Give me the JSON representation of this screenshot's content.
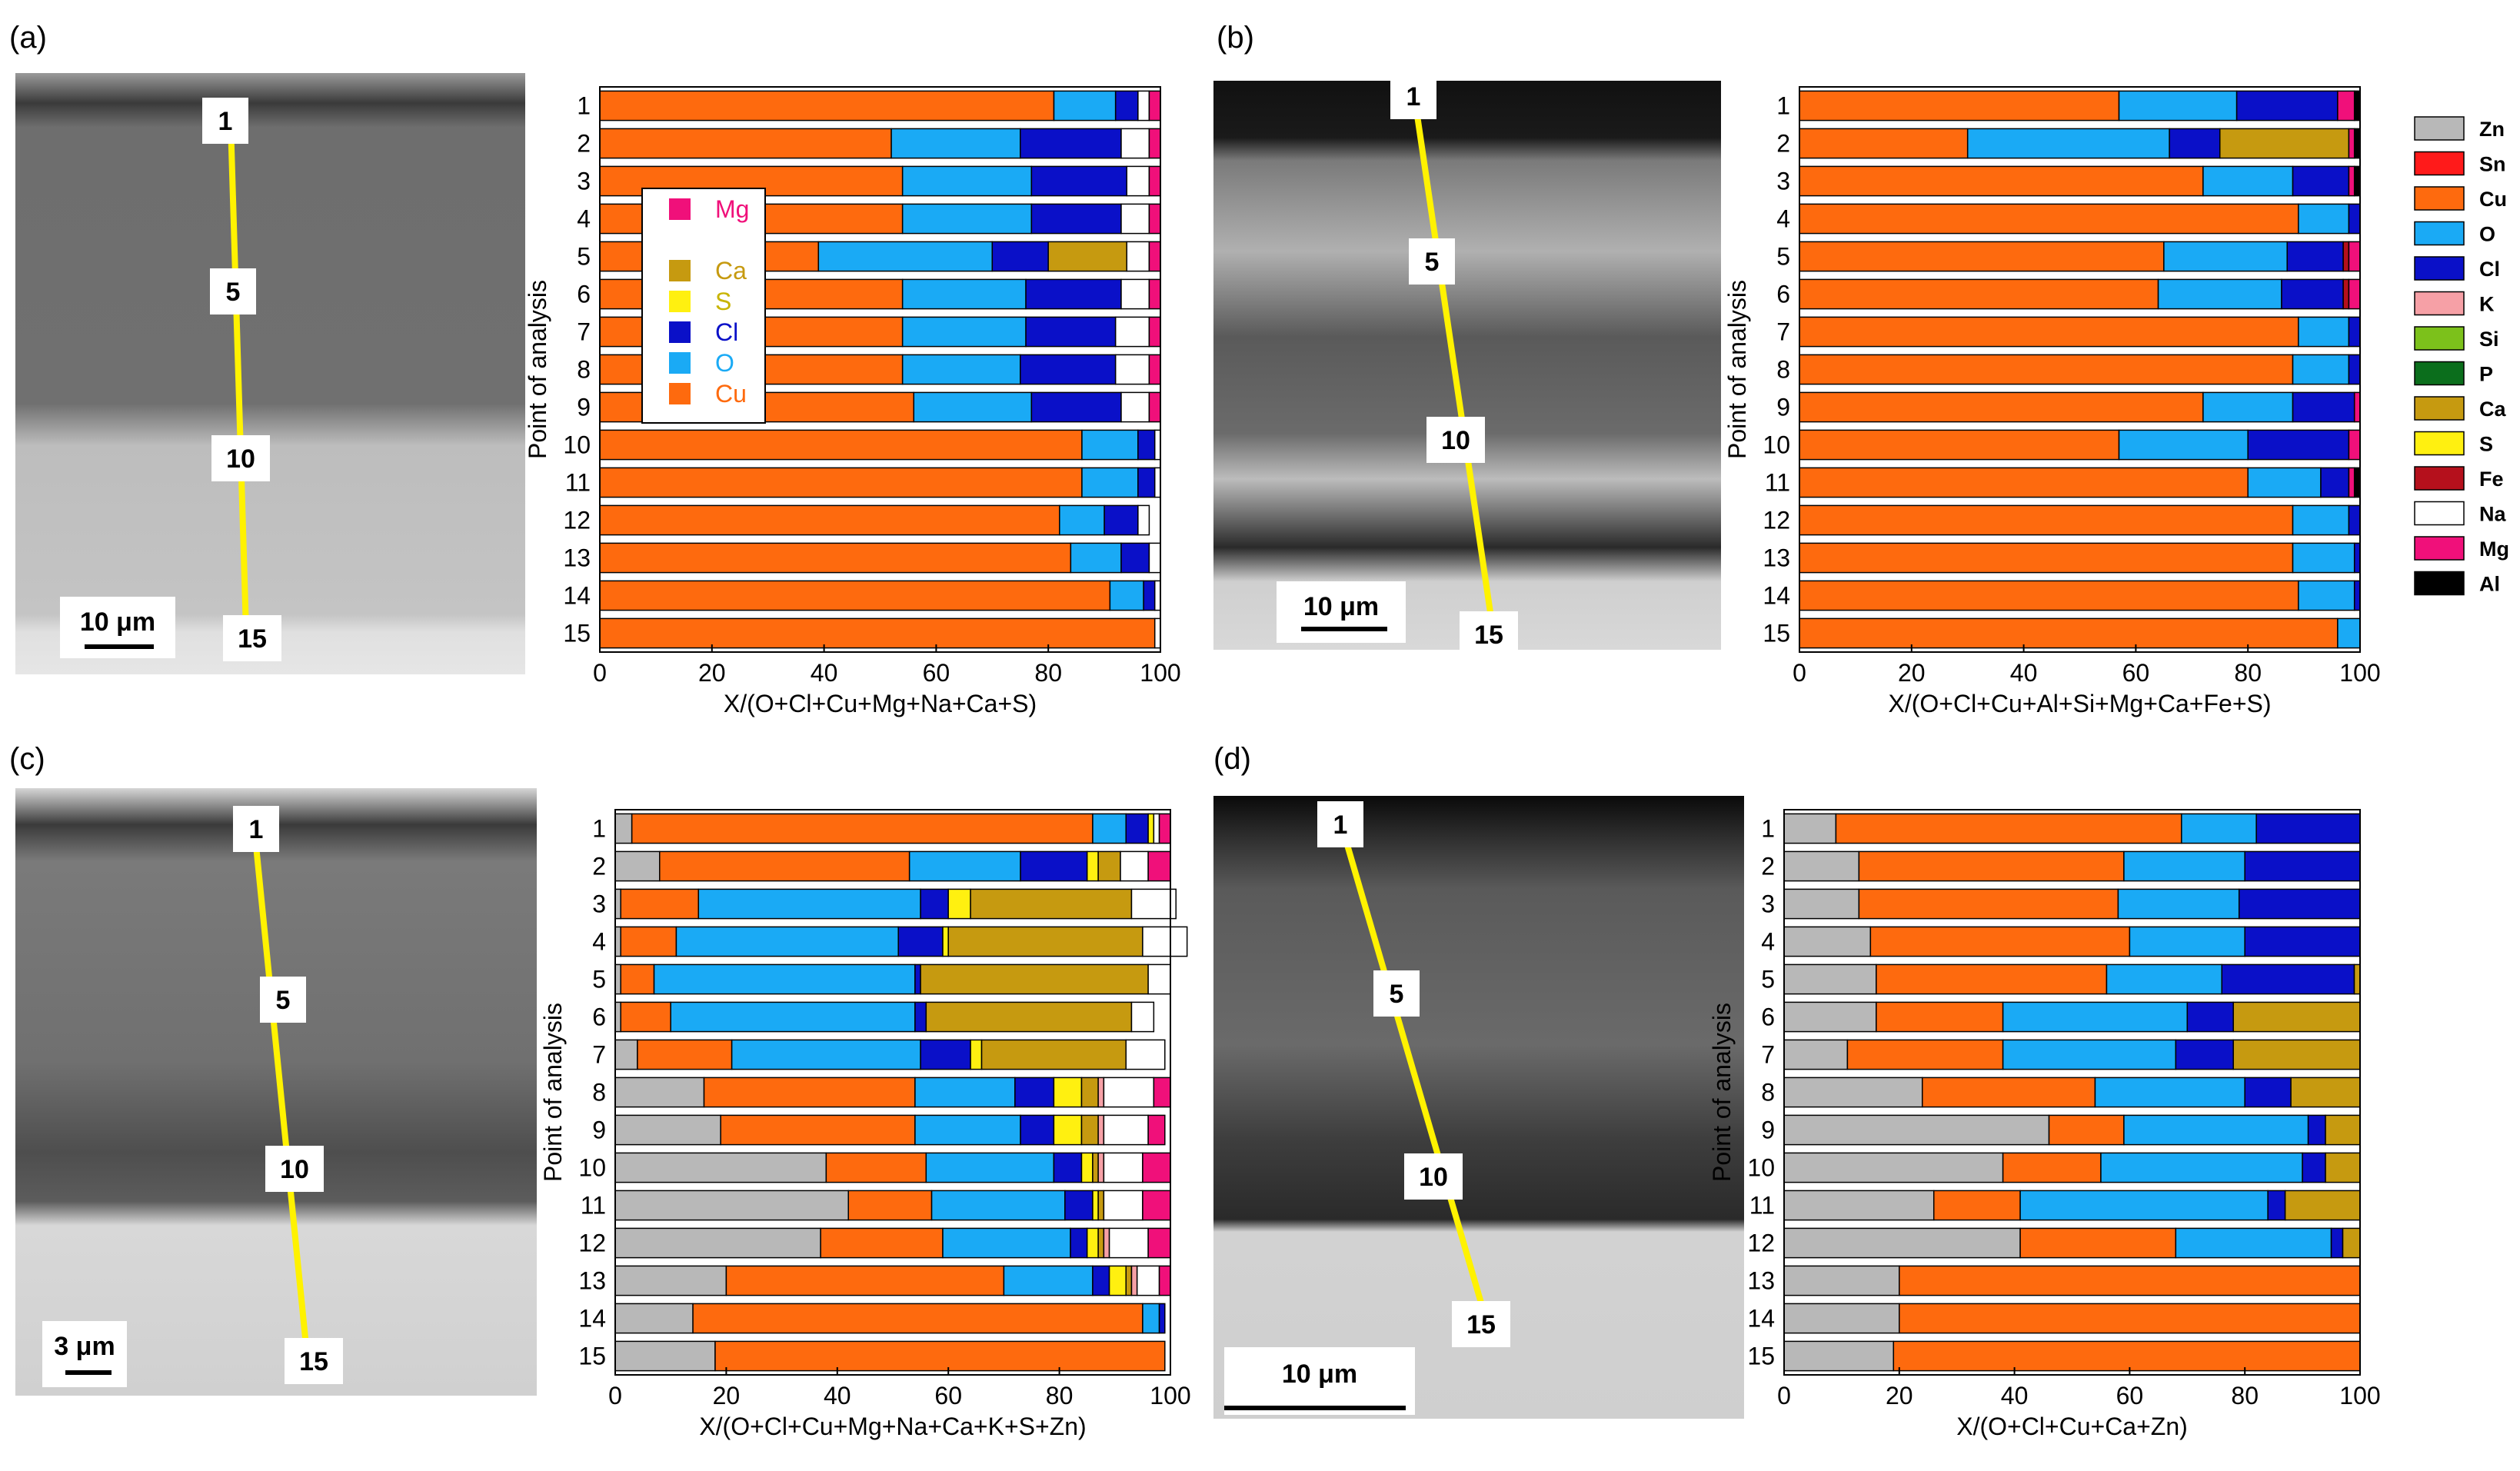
{
  "colors": {
    "Zn": "#b8b8b8",
    "Sn": "#ff1a1a",
    "Cu": "#fe6a0e",
    "O": "#1aaaf5",
    "Cl": "#0a10c8",
    "K": "#f6a0a6",
    "Si": "#7cc11b",
    "P": "#0b6e1c",
    "Ca": "#c69a10",
    "S": "#fff010",
    "Fe": "#b5101c",
    "Na": "#ffffff",
    "Mg": "#f0107a",
    "Al": "#000000"
  },
  "legend": {
    "items": [
      "Zn",
      "Sn",
      "Cu",
      "O",
      "Cl",
      "K",
      "Si",
      "P",
      "Ca",
      "S",
      "Fe",
      "Na",
      "Mg",
      "Al"
    ]
  },
  "panel_a_inset_legend": [
    {
      "name": "Mg",
      "text_color": "#f0107a"
    },
    {
      "name": "",
      "text_color": "#000000"
    },
    {
      "name": "Ca",
      "text_color": "#c69a10"
    },
    {
      "name": "S",
      "text_color": "#c8b400"
    },
    {
      "name": "Cl",
      "text_color": "#0a10c8"
    },
    {
      "name": "O",
      "text_color": "#1aaaf5"
    },
    {
      "name": "Cu",
      "text_color": "#fe6a0e"
    }
  ],
  "panels": [
    {
      "letter": "(a)",
      "scale_bar": "10 μm",
      "points": [
        "1",
        "5",
        "10",
        "15"
      ]
    },
    {
      "letter": "(b)",
      "scale_bar": "10 μm",
      "points": [
        "1",
        "5",
        "10",
        "15"
      ]
    },
    {
      "letter": "(c)",
      "scale_bar": "3 μm",
      "points": [
        "1",
        "5",
        "10",
        "15"
      ]
    },
    {
      "letter": "(d)",
      "scale_bar": "10 μm",
      "points": [
        "1",
        "5",
        "10",
        "15"
      ]
    }
  ],
  "chart_data": [
    {
      "type": "bar",
      "orientation": "horizontal",
      "stacked": true,
      "ylabel": "Point of analysis",
      "xlabel": "X/(O+Cl+Cu+Mg+Na+Ca+S)",
      "xlim": [
        0,
        100
      ],
      "xticks": [
        0,
        20,
        40,
        60,
        80,
        100
      ],
      "categories": [
        "1",
        "2",
        "3",
        "4",
        "5",
        "6",
        "7",
        "8",
        "9",
        "10",
        "11",
        "12",
        "13",
        "14",
        "15"
      ],
      "series": [
        {
          "name": "Cu",
          "values": [
            81,
            52,
            54,
            54,
            39,
            54,
            54,
            54,
            56,
            86,
            86,
            82,
            84,
            91,
            99
          ]
        },
        {
          "name": "O",
          "values": [
            11,
            23,
            23,
            23,
            31,
            22,
            22,
            21,
            21,
            10,
            10,
            8,
            9,
            6,
            0
          ]
        },
        {
          "name": "Cl",
          "values": [
            4,
            18,
            17,
            16,
            10,
            17,
            16,
            17,
            16,
            3,
            3,
            6,
            5,
            2,
            0
          ]
        },
        {
          "name": "Ca",
          "values": [
            0,
            0,
            0,
            0,
            14,
            0,
            0,
            0,
            0,
            0,
            0,
            0,
            0,
            0,
            0
          ]
        },
        {
          "name": "S",
          "values": [
            0,
            0,
            0,
            0,
            0,
            0,
            0,
            0,
            0,
            0,
            0,
            0,
            0,
            0,
            0
          ]
        },
        {
          "name": "Na",
          "values": [
            2,
            5,
            4,
            5,
            4,
            5,
            6,
            6,
            5,
            1,
            1,
            2,
            2,
            1,
            1
          ]
        },
        {
          "name": "Mg",
          "values": [
            2,
            2,
            2,
            2,
            2,
            2,
            2,
            2,
            2,
            0,
            0,
            0,
            0,
            0,
            0
          ]
        }
      ]
    },
    {
      "type": "bar",
      "orientation": "horizontal",
      "stacked": true,
      "ylabel": "Point of analysis",
      "xlabel": "X/(O+Cl+Cu+Al+Si+Mg+Ca+Fe+S)",
      "xlim": [
        0,
        100
      ],
      "xticks": [
        0,
        20,
        40,
        60,
        80,
        100
      ],
      "categories": [
        "1",
        "2",
        "3",
        "4",
        "5",
        "6",
        "7",
        "8",
        "9",
        "10",
        "11",
        "12",
        "13",
        "14",
        "15"
      ],
      "series": [
        {
          "name": "Cu",
          "values": [
            57,
            30,
            72,
            89,
            65,
            64,
            89,
            88,
            72,
            57,
            80,
            88,
            88,
            89,
            96
          ]
        },
        {
          "name": "O",
          "values": [
            21,
            36,
            16,
            9,
            22,
            22,
            9,
            10,
            16,
            23,
            13,
            10,
            11,
            10,
            4
          ]
        },
        {
          "name": "Cl",
          "values": [
            18,
            9,
            10,
            2,
            10,
            11,
            2,
            2,
            11,
            18,
            5,
            2,
            1,
            1,
            0
          ]
        },
        {
          "name": "Ca",
          "values": [
            0,
            23,
            0,
            0,
            0,
            0,
            0,
            0,
            0,
            0,
            0,
            0,
            0,
            0,
            0
          ]
        },
        {
          "name": "Fe",
          "values": [
            0,
            0,
            0,
            0,
            1,
            1,
            0,
            0,
            0,
            0,
            0,
            0,
            0,
            0,
            0
          ]
        },
        {
          "name": "Mg",
          "values": [
            3,
            1,
            1,
            0,
            2,
            2,
            0,
            0,
            1,
            2,
            1,
            0,
            0,
            0,
            0
          ]
        },
        {
          "name": "Al",
          "values": [
            1,
            1,
            1,
            0,
            0,
            0,
            0,
            0,
            0,
            0,
            1,
            0,
            0,
            0,
            0
          ]
        }
      ]
    },
    {
      "type": "bar",
      "orientation": "horizontal",
      "stacked": true,
      "ylabel": "Point of analysis",
      "xlabel": "X/(O+Cl+Cu+Mg+Na+Ca+K+S+Zn)",
      "xlim": [
        0,
        100
      ],
      "xticks": [
        0,
        20,
        40,
        60,
        80,
        100
      ],
      "categories": [
        "1",
        "2",
        "3",
        "4",
        "5",
        "6",
        "7",
        "8",
        "9",
        "10",
        "11",
        "12",
        "13",
        "14",
        "15"
      ],
      "series": [
        {
          "name": "Zn",
          "values": [
            3,
            8,
            1,
            1,
            1,
            1,
            4,
            16,
            19,
            38,
            42,
            37,
            20,
            14,
            18
          ]
        },
        {
          "name": "Cu",
          "values": [
            83,
            45,
            14,
            10,
            6,
            9,
            17,
            38,
            35,
            18,
            15,
            22,
            50,
            81,
            81
          ]
        },
        {
          "name": "O",
          "values": [
            6,
            20,
            40,
            40,
            47,
            44,
            34,
            18,
            19,
            23,
            24,
            23,
            16,
            3,
            0
          ]
        },
        {
          "name": "Cl",
          "values": [
            4,
            12,
            5,
            8,
            1,
            2,
            9,
            7,
            6,
            5,
            5,
            3,
            3,
            1,
            0
          ]
        },
        {
          "name": "S",
          "values": [
            1,
            2,
            4,
            1,
            0,
            0,
            2,
            5,
            5,
            2,
            1,
            2,
            3,
            0,
            0
          ]
        },
        {
          "name": "Ca",
          "values": [
            0,
            4,
            29,
            35,
            41,
            37,
            26,
            3,
            3,
            1,
            1,
            1,
            1,
            0,
            0
          ]
        },
        {
          "name": "K",
          "values": [
            0,
            0,
            0,
            0,
            0,
            0,
            0,
            1,
            1,
            1,
            0,
            1,
            1,
            0,
            0
          ]
        },
        {
          "name": "Na",
          "values": [
            1,
            5,
            8,
            8,
            4,
            4,
            7,
            9,
            8,
            7,
            7,
            7,
            4,
            0,
            0
          ]
        },
        {
          "name": "Mg",
          "values": [
            2,
            4,
            0,
            0,
            0,
            0,
            0,
            3,
            3,
            5,
            5,
            4,
            2,
            0,
            0
          ]
        }
      ]
    },
    {
      "type": "bar",
      "orientation": "horizontal",
      "stacked": true,
      "ylabel": "Point of analysis",
      "xlabel": "X/(O+Cl+Cu+Ca+Zn)",
      "xlim": [
        0,
        100
      ],
      "xticks": [
        0,
        20,
        40,
        60,
        80,
        100
      ],
      "categories": [
        "1",
        "2",
        "3",
        "4",
        "5",
        "6",
        "7",
        "8",
        "9",
        "10",
        "11",
        "12",
        "13",
        "14",
        "15"
      ],
      "series": [
        {
          "name": "Zn",
          "values": [
            9,
            13,
            13,
            15,
            16,
            16,
            11,
            24,
            46,
            38,
            26,
            41,
            20,
            20,
            19
          ]
        },
        {
          "name": "Cu",
          "values": [
            60,
            46,
            45,
            45,
            40,
            22,
            27,
            30,
            13,
            17,
            15,
            27,
            80,
            80,
            81
          ]
        },
        {
          "name": "O",
          "values": [
            13,
            21,
            21,
            20,
            20,
            32,
            30,
            26,
            32,
            35,
            43,
            27,
            0,
            0,
            0
          ]
        },
        {
          "name": "Cl",
          "values": [
            18,
            20,
            21,
            20,
            23,
            8,
            10,
            8,
            3,
            4,
            3,
            2,
            0,
            0,
            0
          ]
        },
        {
          "name": "Ca",
          "values": [
            0,
            0,
            0,
            0,
            1,
            22,
            22,
            12,
            6,
            6,
            13,
            3,
            0,
            0,
            0
          ]
        }
      ]
    }
  ]
}
